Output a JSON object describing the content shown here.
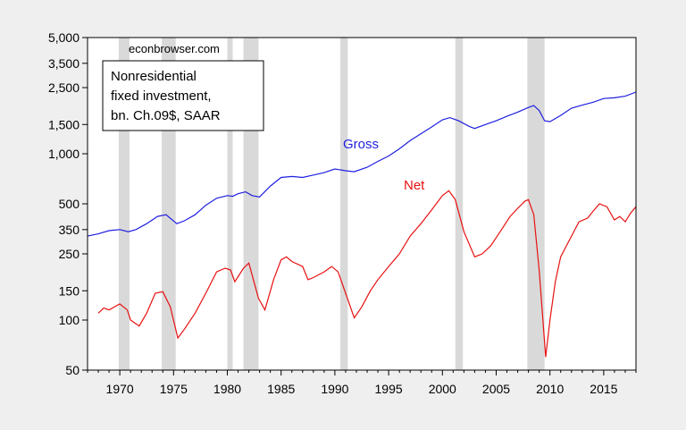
{
  "chart_data": {
    "type": "line",
    "watermark": "econbrowser.com",
    "title_lines": [
      "Nonresidential",
      "fixed investment,",
      "bn. Ch.09$, SAAR"
    ],
    "y_scale": "log",
    "ylim": [
      50,
      5000
    ],
    "xlim": [
      1967.0,
      2018.0
    ],
    "y_ticks": [
      50,
      100,
      150,
      250,
      350,
      500,
      1000,
      1500,
      2500,
      3500,
      5000
    ],
    "y_tick_labels": [
      "50",
      "100",
      "150",
      "250",
      "350",
      "500",
      "1,000",
      "1,500",
      "2,500",
      "3,500",
      "5,000"
    ],
    "x_ticks": [
      1970,
      1975,
      1980,
      1985,
      1990,
      1995,
      2000,
      2005,
      2010,
      2015
    ],
    "x_tick_labels": [
      "1970",
      "1975",
      "1980",
      "1985",
      "1990",
      "1995",
      "2000",
      "2005",
      "2010",
      "2015"
    ],
    "recessions": [
      [
        1969.9,
        1970.9
      ],
      [
        1973.9,
        1975.2
      ],
      [
        1980.0,
        1980.5
      ],
      [
        1981.5,
        1982.9
      ],
      [
        1990.5,
        1991.2
      ],
      [
        2001.2,
        2001.9
      ],
      [
        2007.9,
        2009.5
      ]
    ],
    "grid": false,
    "legend": "top-left",
    "series": [
      {
        "name": "Gross",
        "color": "#1f1fe0",
        "x": [
          1967.0,
          1968.0,
          1969.0,
          1970.0,
          1970.8,
          1971.5,
          1972.5,
          1973.5,
          1974.3,
          1975.3,
          1976.0,
          1977.0,
          1978.0,
          1979.0,
          1980.0,
          1980.5,
          1981.0,
          1981.7,
          1982.3,
          1983.0,
          1984.0,
          1985.0,
          1986.0,
          1987.0,
          1988.0,
          1989.0,
          1990.0,
          1991.0,
          1991.8,
          1993.0,
          1994.0,
          1995.0,
          1996.0,
          1997.0,
          1998.0,
          1999.0,
          2000.0,
          2000.7,
          2001.5,
          2002.5,
          2003.0,
          2004.0,
          2005.0,
          2006.0,
          2007.0,
          2008.0,
          2008.5,
          2009.0,
          2009.5,
          2010.0,
          2011.0,
          2012.0,
          2013.0,
          2014.0,
          2015.0,
          2016.0,
          2017.0,
          2018.0
        ],
        "y": [
          320,
          330,
          345,
          350,
          340,
          350,
          380,
          420,
          430,
          380,
          395,
          430,
          490,
          540,
          560,
          555,
          575,
          590,
          560,
          550,
          640,
          720,
          730,
          720,
          745,
          770,
          810,
          790,
          780,
          830,
          900,
          970,
          1070,
          1200,
          1320,
          1450,
          1600,
          1650,
          1580,
          1460,
          1420,
          1500,
          1580,
          1680,
          1780,
          1900,
          1950,
          1820,
          1580,
          1560,
          1700,
          1880,
          1960,
          2040,
          2150,
          2170,
          2220,
          2350
        ]
      },
      {
        "name": "Net",
        "color": "#e81010",
        "x": [
          1968.0,
          1968.5,
          1969.0,
          1970.0,
          1970.7,
          1971.0,
          1971.8,
          1972.5,
          1973.3,
          1974.0,
          1974.7,
          1975.4,
          1976.0,
          1977.0,
          1978.0,
          1979.0,
          1979.8,
          1980.3,
          1980.7,
          1981.5,
          1982.0,
          1982.9,
          1983.5,
          1984.3,
          1985.0,
          1985.5,
          1986.0,
          1987.0,
          1987.5,
          1988.0,
          1989.0,
          1989.7,
          1990.3,
          1991.0,
          1991.8,
          1992.5,
          1993.3,
          1994.0,
          1995.0,
          1996.0,
          1997.0,
          1998.0,
          1999.0,
          2000.0,
          2000.6,
          2001.2,
          2002.0,
          2003.0,
          2003.7,
          2004.5,
          2005.5,
          2006.3,
          2007.0,
          2007.7,
          2008.0,
          2008.5,
          2009.0,
          2009.6,
          2010.0,
          2010.5,
          2011.0,
          2012.0,
          2012.7,
          2013.5,
          2014.0,
          2014.6,
          2015.3,
          2016.0,
          2016.5,
          2017.0,
          2017.5,
          2018.0
        ],
        "y": [
          110,
          118,
          115,
          125,
          115,
          100,
          92,
          110,
          145,
          148,
          120,
          78,
          88,
          110,
          145,
          195,
          205,
          200,
          170,
          205,
          220,
          135,
          115,
          175,
          230,
          240,
          225,
          210,
          175,
          180,
          195,
          210,
          195,
          145,
          103,
          120,
          150,
          175,
          210,
          250,
          320,
          380,
          460,
          560,
          600,
          530,
          340,
          240,
          250,
          280,
          350,
          420,
          470,
          520,
          530,
          430,
          200,
          60,
          100,
          170,
          240,
          320,
          390,
          410,
          450,
          500,
          480,
          400,
          420,
          390,
          440,
          480
        ]
      }
    ],
    "series_labels": [
      "Gross",
      "Net"
    ]
  }
}
